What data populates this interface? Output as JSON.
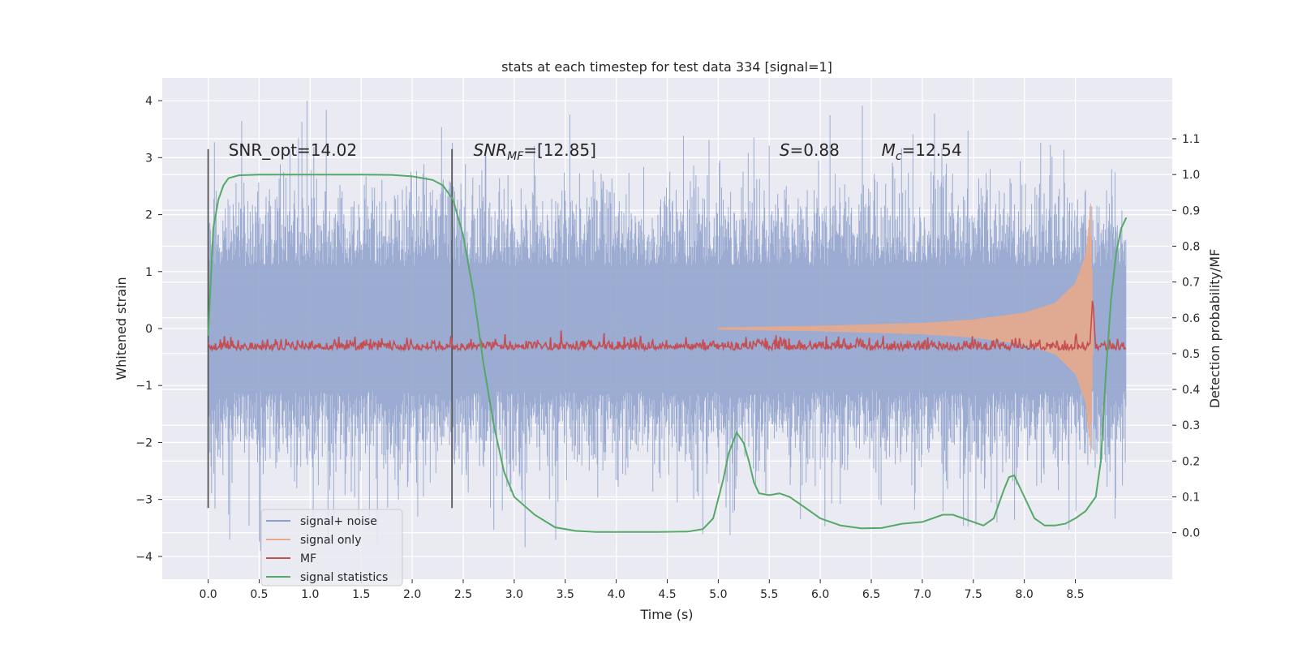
{
  "chart_data": {
    "type": "line",
    "title": "stats at each timestep for test data 334 [signal=1]",
    "xlabel": "Time (s)",
    "ylabel": "Whitened strain",
    "y2label": "Detection probability/MF",
    "xlim": [
      -0.45,
      9.45
    ],
    "ylim": [
      -4.4,
      4.4
    ],
    "y2lim": [
      -0.13,
      1.27
    ],
    "xticks": [
      0.0,
      0.5,
      1.0,
      1.5,
      2.0,
      2.5,
      3.0,
      3.5,
      4.0,
      4.5,
      5.0,
      5.5,
      6.0,
      6.5,
      7.0,
      7.5,
      8.0,
      8.5
    ],
    "xtick_labels": [
      "0.0",
      "0.5",
      "1.0",
      "1.5",
      "2.0",
      "2.5",
      "3.0",
      "3.5",
      "4.0",
      "4.5",
      "5.0",
      "5.5",
      "6.0",
      "6.5",
      "7.0",
      "7.5",
      "8.0",
      "8.5"
    ],
    "yticks": [
      4,
      3,
      2,
      1,
      0,
      -1,
      -2,
      -3,
      -4
    ],
    "ytick_labels": [
      "4",
      "3",
      "2",
      "1",
      "0",
      "−1",
      "−2",
      "−3",
      "−4"
    ],
    "y2ticks": [
      1.1,
      1.0,
      0.9,
      0.8,
      0.7,
      0.6,
      0.5,
      0.4,
      0.3,
      0.2,
      0.1,
      0.0
    ],
    "y2tick_labels": [
      "1.1",
      "1.0",
      "0.9",
      "0.8",
      "0.7",
      "0.6",
      "0.5",
      "0.4",
      "0.3",
      "0.2",
      "0.1",
      "0.0"
    ],
    "grid": true,
    "legend_position": "lower-left",
    "legend": [
      {
        "label": "signal+ noise",
        "color": "#8da0cb"
      },
      {
        "label": "signal only",
        "color": "#e8a88a"
      },
      {
        "label": "MF",
        "color": "#c44e52"
      },
      {
        "label": "signal statistics",
        "color": "#55a868"
      }
    ],
    "annotations": [
      {
        "label": "SNR_opt=14.02",
        "x": 0.2
      },
      {
        "label": "SNR",
        "sub": "MF",
        "suffix": "=[12.85]",
        "italic": true,
        "x": 2.6
      },
      {
        "label": "S",
        "suffix": "=0.88",
        "italic": true,
        "x": 5.6
      },
      {
        "label": "M",
        "sub": "c",
        "suffix": "=12.54",
        "italic": true,
        "x": 6.6
      }
    ],
    "vlines": [
      0.0,
      2.39
    ],
    "noise_envelope": {
      "x_start": 0.0,
      "x_end": 9.0,
      "typical_max": 2.5,
      "typical_min": -2.5,
      "peak_max": 4.0,
      "peak_min": -3.9
    },
    "signal_only_envelope": {
      "x": [
        5.0,
        6.0,
        7.0,
        7.5,
        8.0,
        8.3,
        8.5,
        8.6,
        8.65,
        8.68
      ],
      "amplitude": [
        0.02,
        0.05,
        0.1,
        0.16,
        0.28,
        0.45,
        0.8,
        1.3,
        2.2,
        0.0
      ]
    },
    "mf": {
      "baseline_right_axis": 0.51,
      "noise_amplitude": 0.015,
      "peak_x": 8.67,
      "peak_value": 0.66
    },
    "series": [
      {
        "name": "signal statistics",
        "axis": "right",
        "x": [
          0.0,
          0.05,
          0.1,
          0.15,
          0.2,
          0.3,
          0.5,
          1.0,
          1.5,
          1.8,
          2.0,
          2.1,
          2.2,
          2.3,
          2.4,
          2.5,
          2.6,
          2.7,
          2.8,
          2.9,
          3.0,
          3.2,
          3.4,
          3.6,
          3.8,
          4.0,
          4.4,
          4.7,
          4.85,
          4.95,
          5.05,
          5.1,
          5.18,
          5.25,
          5.3,
          5.35,
          5.4,
          5.5,
          5.6,
          5.7,
          5.8,
          5.9,
          6.0,
          6.2,
          6.4,
          6.6,
          6.8,
          7.0,
          7.1,
          7.2,
          7.3,
          7.4,
          7.5,
          7.6,
          7.7,
          7.8,
          7.85,
          7.9,
          8.0,
          8.1,
          8.2,
          8.3,
          8.4,
          8.5,
          8.6,
          8.7,
          8.75,
          8.8,
          8.85,
          8.9,
          8.95,
          9.0
        ],
        "y": [
          0.55,
          0.85,
          0.93,
          0.97,
          0.99,
          0.998,
          1.0,
          1.0,
          1.0,
          0.999,
          0.995,
          0.99,
          0.985,
          0.97,
          0.93,
          0.83,
          0.67,
          0.47,
          0.3,
          0.17,
          0.1,
          0.05,
          0.015,
          0.005,
          0.002,
          0.002,
          0.002,
          0.003,
          0.01,
          0.04,
          0.15,
          0.22,
          0.28,
          0.25,
          0.2,
          0.14,
          0.11,
          0.105,
          0.11,
          0.1,
          0.08,
          0.06,
          0.04,
          0.02,
          0.012,
          0.013,
          0.025,
          0.03,
          0.04,
          0.05,
          0.05,
          0.04,
          0.03,
          0.02,
          0.04,
          0.12,
          0.155,
          0.16,
          0.1,
          0.04,
          0.02,
          0.02,
          0.025,
          0.04,
          0.06,
          0.1,
          0.2,
          0.45,
          0.65,
          0.78,
          0.85,
          0.88
        ]
      }
    ]
  }
}
